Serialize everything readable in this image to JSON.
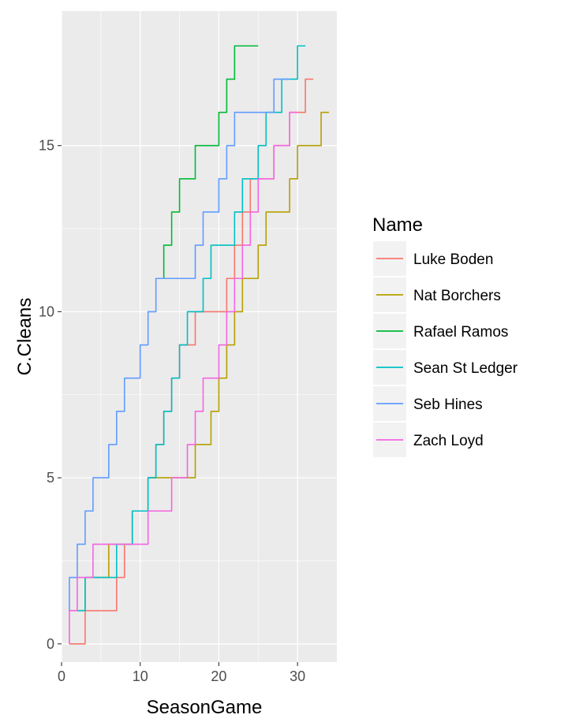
{
  "chart_data": {
    "type": "line",
    "step": true,
    "xlabel": "SeasonGame",
    "ylabel": "C.Cleans",
    "xlim": [
      0,
      35
    ],
    "ylim": [
      -0.55,
      19.05
    ],
    "x_ticks": [
      0,
      10,
      20,
      30
    ],
    "x_tick_labels": [
      "0",
      "10",
      "20",
      "30"
    ],
    "y_ticks": [
      0,
      5,
      10,
      15
    ],
    "y_tick_labels": [
      "0",
      "5",
      "10",
      "15"
    ],
    "grid": true,
    "legend": {
      "title": "Name",
      "position": "right"
    },
    "series": [
      {
        "name": "Luke Boden",
        "color": "#F8766D",
        "x": [
          1,
          2,
          3,
          4,
          5,
          6,
          7,
          8,
          9,
          10,
          11,
          12,
          13,
          14,
          15,
          16,
          17,
          18,
          19,
          20,
          21,
          22,
          23,
          24,
          25,
          26,
          27,
          28,
          29,
          30,
          31,
          32
        ],
        "y": [
          0,
          0,
          0,
          1,
          1,
          1,
          1,
          2,
          3,
          4,
          4,
          5,
          6,
          7,
          8,
          9,
          9,
          10,
          10,
          10,
          10,
          11,
          12,
          13,
          14,
          14,
          14,
          15,
          15,
          16,
          16,
          17
        ]
      },
      {
        "name": "Nat Borchers",
        "color": "#B79F00",
        "x": [
          1,
          2,
          3,
          4,
          5,
          6,
          7,
          8,
          9,
          10,
          11,
          12,
          13,
          14,
          15,
          16,
          17,
          18,
          19,
          20,
          21,
          22,
          23,
          24,
          25,
          26,
          27,
          28,
          29,
          30,
          31,
          32,
          33,
          34
        ],
        "y": [
          1,
          1,
          1,
          2,
          2,
          2,
          3,
          3,
          3,
          4,
          4,
          5,
          5,
          5,
          5,
          5,
          5,
          6,
          6,
          7,
          8,
          9,
          10,
          11,
          11,
          12,
          13,
          13,
          13,
          14,
          15,
          15,
          15,
          16
        ]
      },
      {
        "name": "Rafael Ramos",
        "color": "#00BA38",
        "x": [
          13,
          14,
          15,
          16,
          17,
          18,
          19,
          20,
          21,
          22,
          23,
          24,
          25
        ],
        "y": [
          11,
          12,
          13,
          14,
          14,
          15,
          15,
          15,
          16,
          17,
          18,
          18,
          18
        ]
      },
      {
        "name": "Sean St Ledger",
        "color": "#00BFC4",
        "x": [
          2,
          3,
          4,
          5,
          6,
          7,
          8,
          9,
          10,
          11,
          12,
          13,
          14,
          15,
          16,
          17,
          18,
          19,
          20,
          21,
          22,
          23,
          24,
          25,
          26,
          27,
          28,
          29,
          30,
          31
        ],
        "y": [
          1,
          1,
          2,
          2,
          2,
          2,
          3,
          3,
          4,
          4,
          5,
          6,
          7,
          8,
          9,
          10,
          10,
          11,
          12,
          12,
          12,
          13,
          14,
          14,
          15,
          16,
          16,
          17,
          17,
          18
        ]
      },
      {
        "name": "Seb Hines",
        "color": "#619CFF",
        "x": [
          1,
          2,
          3,
          4,
          5,
          6,
          7,
          8,
          9,
          10,
          11,
          12,
          13,
          14,
          15,
          16,
          17,
          18,
          19,
          20,
          21,
          22,
          23,
          24,
          25,
          26,
          27,
          28,
          29
        ],
        "y": [
          1,
          2,
          3,
          4,
          5,
          5,
          6,
          7,
          8,
          8,
          9,
          10,
          11,
          11,
          11,
          11,
          11,
          12,
          13,
          13,
          14,
          15,
          16,
          16,
          16,
          16,
          16,
          17,
          17
        ]
      },
      {
        "name": "Zach Loyd",
        "color": "#F564E3",
        "x": [
          1,
          2,
          3,
          4,
          5,
          6,
          7,
          8,
          9,
          10,
          11,
          12,
          13,
          14,
          15,
          16,
          17,
          18,
          19,
          20,
          21,
          22,
          23,
          24,
          25,
          26,
          27,
          28,
          29,
          30
        ],
        "y": [
          0,
          1,
          2,
          2,
          3,
          3,
          3,
          3,
          3,
          3,
          3,
          4,
          4,
          4,
          5,
          5,
          6,
          7,
          8,
          8,
          9,
          10,
          11,
          12,
          13,
          14,
          14,
          15,
          15,
          16
        ]
      }
    ]
  }
}
